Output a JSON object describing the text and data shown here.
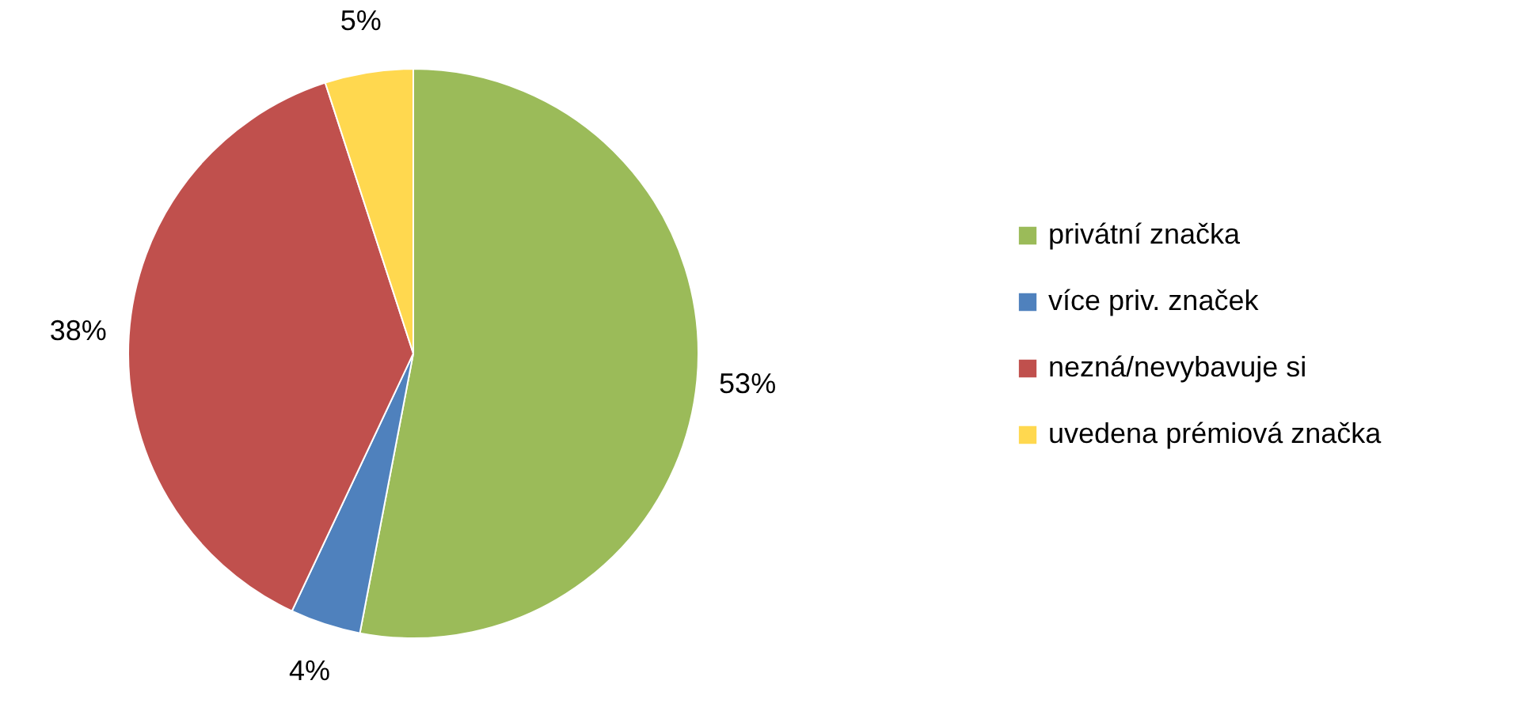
{
  "chart_data": {
    "type": "pie",
    "categories": [
      "privátní značka",
      "více priv. značek",
      "nezná/nevybavuje si",
      "uvedena prémiová značka"
    ],
    "values": [
      53,
      4,
      38,
      5
    ],
    "colors": [
      "#9bbb59",
      "#4f81bd",
      "#c0504d",
      "#ffd84f"
    ],
    "value_labels": [
      "53%",
      "4%",
      "38%",
      "5%"
    ],
    "legend": "right"
  }
}
